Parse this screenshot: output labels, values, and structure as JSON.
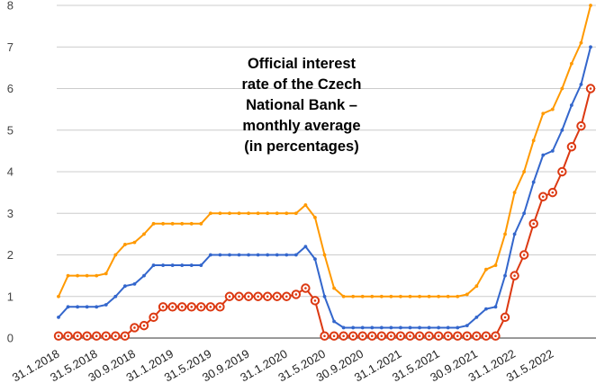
{
  "chart_data": {
    "type": "line",
    "title": "Official interest\nrate of the Czech\nNational Bank –\nmonthly average\n(in percentages)",
    "ylim": [
      0,
      8
    ],
    "yticks": [
      "0",
      "1",
      "2",
      "3",
      "4",
      "5",
      "6",
      "7",
      "8"
    ],
    "grid": true,
    "legend": "none",
    "x_tick_labels": [
      {
        "label": "31.1.2018",
        "index": 0
      },
      {
        "label": "31.5.2018",
        "index": 4
      },
      {
        "label": "30.9.2018",
        "index": 8
      },
      {
        "label": "31.1.2019",
        "index": 12
      },
      {
        "label": "31.5.2019",
        "index": 16
      },
      {
        "label": "30.9.2019",
        "index": 20
      },
      {
        "label": "31.1.2020",
        "index": 24
      },
      {
        "label": "31.5.2020",
        "index": 28
      },
      {
        "label": "30.9.2020",
        "index": 32
      },
      {
        "label": "31.1.2021",
        "index": 36
      },
      {
        "label": "31.5.2021",
        "index": 40
      },
      {
        "label": "30.9.2021",
        "index": 44
      },
      {
        "label": "31.1.2022",
        "index": 48
      },
      {
        "label": "31.5.2022",
        "index": 52
      }
    ],
    "series": [
      {
        "color": "#ff9900",
        "marker": "dot",
        "values": [
          1.0,
          1.5,
          1.5,
          1.5,
          1.5,
          1.55,
          2.0,
          2.25,
          2.3,
          2.5,
          2.75,
          2.75,
          2.75,
          2.75,
          2.75,
          2.75,
          3.0,
          3.0,
          3.0,
          3.0,
          3.0,
          3.0,
          3.0,
          3.0,
          3.0,
          3.0,
          3.2,
          2.9,
          2.0,
          1.2,
          1.0,
          1.0,
          1.0,
          1.0,
          1.0,
          1.0,
          1.0,
          1.0,
          1.0,
          1.0,
          1.0,
          1.0,
          1.0,
          1.05,
          1.25,
          1.65,
          1.75,
          2.5,
          3.5,
          4.0,
          4.75,
          5.4,
          5.5,
          6.0,
          6.6,
          7.1,
          8.0
        ]
      },
      {
        "color": "#3366cc",
        "marker": "dot",
        "values": [
          0.5,
          0.75,
          0.75,
          0.75,
          0.75,
          0.8,
          1.0,
          1.25,
          1.3,
          1.5,
          1.75,
          1.75,
          1.75,
          1.75,
          1.75,
          1.75,
          2.0,
          2.0,
          2.0,
          2.0,
          2.0,
          2.0,
          2.0,
          2.0,
          2.0,
          2.0,
          2.2,
          1.9,
          1.0,
          0.4,
          0.25,
          0.25,
          0.25,
          0.25,
          0.25,
          0.25,
          0.25,
          0.25,
          0.25,
          0.25,
          0.25,
          0.25,
          0.25,
          0.3,
          0.5,
          0.7,
          0.75,
          1.5,
          2.5,
          3.0,
          3.75,
          4.4,
          4.5,
          5.0,
          5.6,
          6.1,
          7.0
        ]
      },
      {
        "color": "#dc3912",
        "marker": "ring",
        "values": [
          0.05,
          0.05,
          0.05,
          0.05,
          0.05,
          0.05,
          0.05,
          0.05,
          0.25,
          0.3,
          0.5,
          0.75,
          0.75,
          0.75,
          0.75,
          0.75,
          0.75,
          0.75,
          1.0,
          1.0,
          1.0,
          1.0,
          1.0,
          1.0,
          1.0,
          1.05,
          1.2,
          0.9,
          0.05,
          0.05,
          0.05,
          0.05,
          0.05,
          0.05,
          0.05,
          0.05,
          0.05,
          0.05,
          0.05,
          0.05,
          0.05,
          0.05,
          0.05,
          0.05,
          0.05,
          0.05,
          0.05,
          0.5,
          1.5,
          2.0,
          2.75,
          3.4,
          3.5,
          4.0,
          4.6,
          5.1,
          6.0
        ]
      }
    ]
  }
}
